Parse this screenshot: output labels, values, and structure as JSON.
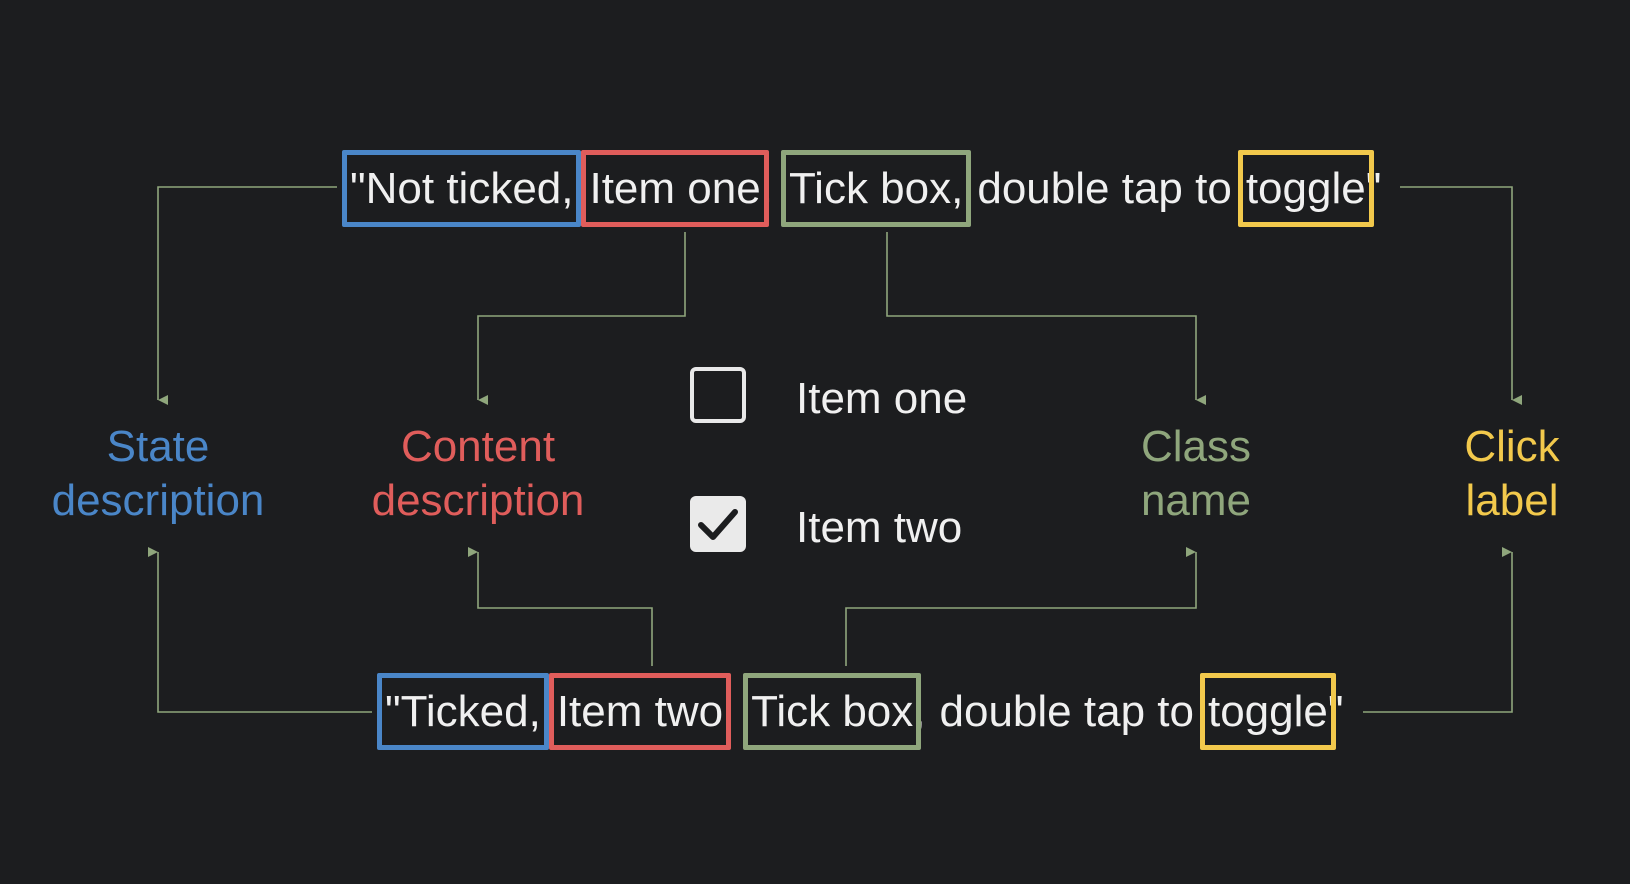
{
  "top_sentence": {
    "state": "\"Not ticked,",
    "content": "Item one",
    "sep1": ",",
    "class": "Tick box,",
    "middle": "double tap to",
    "click": "toggle",
    "end": "\""
  },
  "bottom_sentence": {
    "state": "\"Ticked,",
    "content": "Item two",
    "sep1": "",
    "class": "Tick box",
    "sep2": ",",
    "middle": "double tap to",
    "click": "toggle",
    "end": "\""
  },
  "labels": {
    "state": [
      "State",
      "description"
    ],
    "content": [
      "Content",
      "description"
    ],
    "class": [
      "Class",
      "name"
    ],
    "click": [
      "Click",
      "label"
    ]
  },
  "checkboxes": [
    {
      "label": "Item one",
      "checked": false
    },
    {
      "label": "Item two",
      "checked": true
    }
  ],
  "colors": {
    "state": "#4a86c8",
    "content": "#e05d5b",
    "class": "#8fa67c",
    "click": "#f2c94c",
    "connector": "#8fa67c",
    "background": "#1c1d1f"
  },
  "icons": {
    "unchecked": "checkbox-empty-icon",
    "checked": "checkbox-checked-icon"
  }
}
